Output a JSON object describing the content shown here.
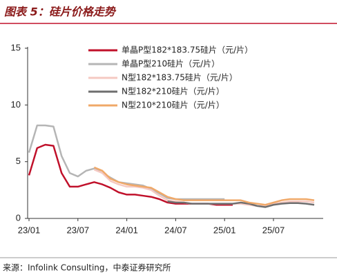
{
  "chart_data": {
    "type": "line",
    "title": "图表 5：硅片价格走势",
    "source": "来源：Infolink Consulting，中泰证券研究所",
    "x": [
      "23/01",
      "23/02",
      "23/03",
      "23/04",
      "23/05",
      "23/06",
      "23/07",
      "23/08",
      "23/09",
      "23/10",
      "23/11",
      "23/12",
      "24/01",
      "24/02",
      "24/03",
      "24/04",
      "24/05",
      "24/06",
      "24/07",
      "24/08",
      "24/09",
      "24/10",
      "24/11",
      "24/12",
      "25/01",
      "25/02",
      "25/03",
      "25/04",
      "25/05",
      "25/06",
      "25/07",
      "25/08",
      "25/09",
      "25/10",
      "25/11",
      "25/12"
    ],
    "xticks": [
      "23/01",
      "23/07",
      "24/01",
      "24/07",
      "25/01",
      "25/07"
    ],
    "ylim": [
      0,
      15
    ],
    "yticks": [
      0,
      5,
      10,
      15
    ],
    "series": [
      {
        "name": "单晶P型182*183.75硅片（元/片）",
        "color": "#c0102a",
        "values": [
          3.8,
          6.2,
          6.5,
          6.4,
          4.0,
          2.8,
          2.8,
          3.0,
          3.2,
          3.0,
          2.7,
          2.3,
          2.1,
          2.1,
          2.0,
          1.9,
          1.7,
          1.4,
          1.3,
          1.3,
          1.3,
          1.3,
          1.3,
          1.2,
          1.2,
          1.2,
          null,
          null,
          null,
          null,
          null,
          null,
          null,
          null,
          null,
          null
        ]
      },
      {
        "name": "单晶P型210硅片（元/片）",
        "color": "#b5b5b5",
        "values": [
          5.8,
          8.2,
          8.2,
          8.1,
          5.5,
          4.0,
          3.7,
          4.2,
          4.4,
          4.0,
          3.6,
          3.2,
          3.1,
          3.0,
          2.9,
          2.6,
          2.2,
          1.8,
          1.7,
          1.7,
          1.7,
          1.7,
          1.7,
          1.7,
          1.7,
          null,
          null,
          null,
          null,
          null,
          null,
          null,
          null,
          null,
          null,
          null
        ]
      },
      {
        "name": "N型182*183.75硅片（元/片）",
        "color": "#f5c9c2",
        "values": [
          null,
          null,
          null,
          null,
          null,
          null,
          null,
          null,
          4.3,
          4.0,
          3.3,
          3.0,
          2.8,
          2.8,
          2.7,
          2.5,
          2.0,
          1.6,
          1.5,
          1.4,
          1.3,
          1.3,
          1.3,
          1.3,
          1.3,
          1.3,
          1.3,
          1.2,
          1.1,
          1.1,
          1.3,
          1.4,
          1.5,
          1.5,
          1.5,
          1.4
        ]
      },
      {
        "name": "N型182*210硅片（元/片）",
        "color": "#6e6e6e",
        "values": [
          null,
          null,
          null,
          null,
          null,
          null,
          null,
          null,
          null,
          null,
          null,
          null,
          null,
          null,
          null,
          null,
          null,
          1.5,
          1.4,
          1.4,
          1.3,
          1.3,
          1.3,
          1.3,
          1.3,
          1.3,
          1.4,
          1.3,
          1.1,
          1.0,
          1.2,
          1.3,
          1.35,
          1.35,
          1.3,
          1.2
        ]
      },
      {
        "name": "N型210*210硅片（元/片）",
        "color": "#f0a868",
        "values": [
          null,
          null,
          null,
          null,
          null,
          null,
          null,
          null,
          4.5,
          4.2,
          3.5,
          3.2,
          3.0,
          2.9,
          2.8,
          2.7,
          2.3,
          1.9,
          1.7,
          1.6,
          1.6,
          1.6,
          1.6,
          1.6,
          1.6,
          1.6,
          1.6,
          1.4,
          1.3,
          1.2,
          1.4,
          1.6,
          1.7,
          1.7,
          1.7,
          1.6
        ]
      }
    ]
  }
}
